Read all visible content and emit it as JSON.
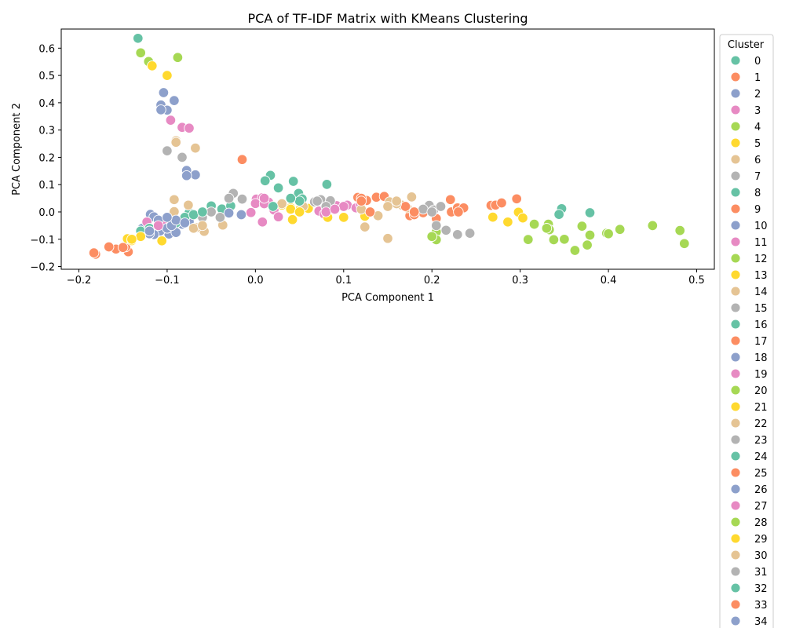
{
  "chart_data": {
    "type": "scatter",
    "title": "PCA of TF-IDF Matrix with KMeans Clustering",
    "xlabel": "PCA Component 1",
    "ylabel": "PCA Component 2",
    "xlim": [
      -0.22,
      0.52
    ],
    "ylim": [
      -0.21,
      0.67
    ],
    "xticks": [
      -0.2,
      -0.1,
      0.0,
      0.1,
      0.2,
      0.3,
      0.4,
      0.5
    ],
    "xtick_labels": [
      "−0.2",
      "−0.1",
      "0.0",
      "0.1",
      "0.2",
      "0.3",
      "0.4",
      "0.5"
    ],
    "yticks": [
      -0.2,
      -0.1,
      0.0,
      0.1,
      0.2,
      0.3,
      0.4,
      0.5,
      0.6
    ],
    "ytick_labels": [
      "−0.2",
      "−0.1",
      "0.0",
      "0.1",
      "0.2",
      "0.3",
      "0.4",
      "0.5",
      "0.6"
    ],
    "grid": false,
    "legend": {
      "title": "Cluster",
      "placement": "outside-right",
      "labels": [
        "0",
        "1",
        "2",
        "3",
        "4",
        "5",
        "6",
        "7",
        "8",
        "9",
        "10",
        "11",
        "12",
        "13",
        "14",
        "15",
        "16",
        "17",
        "18",
        "19",
        "20",
        "21",
        "22",
        "23",
        "24",
        "25",
        "26",
        "27",
        "28",
        "29",
        "30",
        "31",
        "32",
        "33",
        "34"
      ]
    },
    "palette": [
      "#66c2a5",
      "#fc8d62",
      "#8da0cb",
      "#e78ac3",
      "#a6d854",
      "#ffd92f",
      "#e5c494",
      "#b3b3b3"
    ],
    "series": [
      {
        "name": "0",
        "points": [
          [
            -0.133,
            0.636
          ],
          [
            0.017,
            0.134
          ],
          [
            0.043,
            0.112
          ],
          [
            0.026,
            0.088
          ],
          [
            0.049,
            0.068
          ],
          [
            0.053,
            0.048
          ],
          [
            0.011,
            0.114
          ],
          [
            0.081,
            0.101
          ],
          [
            0.347,
            0.012
          ],
          [
            0.344,
            -0.009
          ],
          [
            0.379,
            -0.003
          ],
          [
            -0.05,
            0.022
          ],
          [
            -0.075,
            -0.002
          ],
          [
            -0.038,
            0.011
          ],
          [
            -0.028,
            0.022
          ],
          [
            -0.063,
            -0.011
          ]
        ]
      },
      {
        "name": "1",
        "points": [
          [
            -0.015,
            0.192
          ],
          [
            0.116,
            0.053
          ],
          [
            0.126,
            0.042
          ],
          [
            0.137,
            0.054
          ],
          [
            0.146,
            0.057
          ],
          [
            0.175,
            -0.014
          ],
          [
            0.18,
            0.001
          ],
          [
            0.19,
            -0.003
          ],
          [
            0.205,
            -0.024
          ],
          [
            0.221,
            0.045
          ],
          [
            0.222,
            0.0
          ],
          [
            0.229,
            0.015
          ],
          [
            0.236,
            0.015
          ],
          [
            0.267,
            0.024
          ],
          [
            0.272,
            0.025
          ],
          [
            0.279,
            0.033
          ],
          [
            0.296,
            0.048
          ],
          [
            -0.181,
            -0.155
          ],
          [
            -0.158,
            -0.136
          ],
          [
            -0.144,
            -0.146
          ],
          [
            -0.166,
            -0.128
          ],
          [
            -0.147,
            -0.128
          ],
          [
            -0.183,
            -0.15
          ]
        ]
      },
      {
        "name": "2",
        "points": [
          [
            -0.104,
            0.437
          ],
          [
            -0.107,
            0.392
          ],
          [
            -0.092,
            0.408
          ],
          [
            -0.1,
            0.373
          ],
          [
            -0.107,
            0.374
          ],
          [
            -0.078,
            0.152
          ],
          [
            -0.068,
            0.136
          ],
          [
            -0.078,
            0.133
          ],
          [
            -0.119,
            -0.009
          ],
          [
            -0.115,
            -0.018
          ],
          [
            -0.098,
            -0.081
          ],
          [
            -0.124,
            -0.074
          ],
          [
            -0.128,
            -0.06
          ],
          [
            -0.108,
            -0.07
          ],
          [
            -0.093,
            -0.038
          ],
          [
            -0.083,
            -0.045
          ],
          [
            -0.075,
            -0.035
          ],
          [
            -0.03,
            -0.004
          ],
          [
            -0.016,
            -0.01
          ],
          [
            -0.09,
            -0.075
          ],
          [
            -0.115,
            -0.083
          ]
        ]
      },
      {
        "name": "3",
        "points": [
          [
            -0.096,
            0.336
          ],
          [
            -0.083,
            0.31
          ],
          [
            -0.075,
            0.307
          ],
          [
            0.001,
            0.047
          ],
          [
            0.008,
            0.052
          ],
          [
            0.015,
            0.036
          ],
          [
            0.021,
            0.007
          ],
          [
            0.026,
            -0.018
          ],
          [
            0.008,
            -0.037
          ],
          [
            0.072,
            0.003
          ],
          [
            0.078,
            -0.008
          ],
          [
            0.092,
            0.023
          ],
          [
            0.104,
            0.025
          ],
          [
            0.114,
            0.015
          ],
          [
            0.119,
            0.028
          ],
          [
            -0.104,
            -0.045
          ],
          [
            -0.123,
            -0.037
          ],
          [
            0.0,
            0.031
          ],
          [
            -0.005,
            -0.002
          ]
        ]
      },
      {
        "name": "4",
        "points": [
          [
            -0.13,
            0.583
          ],
          [
            -0.121,
            0.551
          ],
          [
            -0.088,
            0.566
          ],
          [
            0.205,
            -0.073
          ],
          [
            0.205,
            -0.102
          ],
          [
            0.309,
            -0.101
          ],
          [
            0.316,
            -0.045
          ],
          [
            0.332,
            -0.045
          ],
          [
            0.333,
            -0.065
          ],
          [
            0.338,
            -0.102
          ],
          [
            0.362,
            -0.141
          ],
          [
            0.37,
            -0.052
          ],
          [
            0.376,
            -0.121
          ],
          [
            0.379,
            -0.085
          ],
          [
            0.398,
            -0.078
          ],
          [
            0.413,
            -0.064
          ],
          [
            0.45,
            -0.05
          ],
          [
            0.481,
            -0.068
          ],
          [
            0.486,
            -0.116
          ]
        ]
      },
      {
        "name": "5",
        "points": [
          [
            -0.117,
            0.535
          ],
          [
            -0.1,
            0.5
          ],
          [
            0.042,
            -0.028
          ],
          [
            0.049,
            0.005
          ],
          [
            0.06,
            0.013
          ],
          [
            0.082,
            -0.02
          ],
          [
            0.1,
            -0.02
          ],
          [
            0.124,
            -0.016
          ],
          [
            0.269,
            -0.019
          ],
          [
            0.286,
            -0.037
          ],
          [
            0.298,
            -0.001
          ],
          [
            0.303,
            -0.022
          ],
          [
            -0.106,
            -0.106
          ],
          [
            -0.13,
            -0.084
          ],
          [
            -0.145,
            -0.098
          ],
          [
            -0.14,
            -0.105
          ],
          [
            0.03,
            0.025
          ],
          [
            0.04,
            0.015
          ]
        ]
      },
      {
        "name": "6",
        "points": [
          [
            -0.09,
            0.261
          ],
          [
            -0.09,
            0.255
          ],
          [
            -0.068,
            0.234
          ],
          [
            -0.092,
            0.045
          ],
          [
            -0.076,
            0.025
          ],
          [
            -0.092,
            0.001
          ],
          [
            -0.058,
            -0.071
          ],
          [
            -0.067,
            -0.058
          ],
          [
            -0.037,
            -0.048
          ],
          [
            0.124,
            -0.055
          ],
          [
            0.15,
            -0.097
          ],
          [
            0.152,
            0.037
          ],
          [
            0.166,
            0.025
          ],
          [
            0.172,
            0.015
          ],
          [
            0.177,
            0.055
          ],
          [
            0.139,
            -0.014
          ],
          [
            0.03,
            0.03
          ],
          [
            0.054,
            0.02
          ]
        ]
      },
      {
        "name": "7",
        "points": [
          [
            -0.083,
            0.2
          ],
          [
            -0.1,
            0.224
          ],
          [
            -0.025,
            0.068
          ],
          [
            -0.015,
            0.047
          ],
          [
            0.067,
            0.037
          ],
          [
            0.074,
            0.045
          ],
          [
            0.085,
            0.041
          ],
          [
            0.197,
            0.024
          ],
          [
            0.202,
            0.007
          ],
          [
            0.21,
            0.022
          ],
          [
            0.205,
            -0.05
          ],
          [
            0.216,
            -0.067
          ],
          [
            0.229,
            -0.083
          ],
          [
            0.243,
            -0.078
          ],
          [
            -0.05,
            0.0
          ],
          [
            -0.06,
            -0.02
          ],
          [
            -0.03,
            0.05
          ]
        ]
      },
      {
        "name": "8",
        "points": [
          [
            -0.13,
            -0.07
          ],
          [
            -0.12,
            -0.06
          ],
          [
            -0.09,
            -0.04
          ],
          [
            -0.08,
            -0.02
          ],
          [
            0.05,
            0.04
          ]
        ]
      },
      {
        "name": "9",
        "points": [
          [
            0.12,
            0.05
          ],
          [
            0.17,
            0.02
          ],
          [
            0.18,
            -0.01
          ],
          [
            -0.15,
            -0.13
          ]
        ]
      },
      {
        "name": "10",
        "points": [
          [
            -0.11,
            -0.03
          ],
          [
            -0.1,
            -0.06
          ],
          [
            -0.12,
            -0.08
          ],
          [
            -0.095,
            -0.05
          ]
        ]
      },
      {
        "name": "11",
        "points": [
          [
            0.1,
            0.02
          ],
          [
            0.01,
            0.03
          ],
          [
            -0.11,
            -0.05
          ]
        ]
      },
      {
        "name": "12",
        "points": [
          [
            0.2,
            -0.09
          ],
          [
            0.33,
            -0.06
          ]
        ]
      },
      {
        "name": "13",
        "points": [
          [
            0.04,
            0.01
          ],
          [
            -0.13,
            -0.09
          ],
          [
            0.1,
            -0.02
          ]
        ]
      },
      {
        "name": "14",
        "points": [
          [
            0.16,
            0.03
          ],
          [
            -0.07,
            -0.06
          ],
          [
            0.12,
            0.01
          ]
        ]
      },
      {
        "name": "15",
        "points": [
          [
            0.19,
            0.01
          ],
          [
            -0.04,
            -0.02
          ],
          [
            0.08,
            0.02
          ]
        ]
      },
      {
        "name": "16",
        "points": [
          [
            -0.07,
            -0.01
          ],
          [
            0.04,
            0.05
          ]
        ]
      },
      {
        "name": "17",
        "points": [
          [
            0.12,
            0.04
          ],
          [
            0.23,
            0.0
          ]
        ]
      },
      {
        "name": "18",
        "points": [
          [
            -0.09,
            -0.03
          ],
          [
            -0.12,
            -0.07
          ]
        ]
      },
      {
        "name": "19",
        "points": [
          [
            0.01,
            0.05
          ],
          [
            0.08,
            0.0
          ]
        ]
      },
      {
        "name": "20",
        "points": [
          [
            0.4,
            -0.08
          ]
        ]
      },
      {
        "name": "21",
        "points": [
          [
            0.1,
            -0.02
          ],
          [
            -0.14,
            -0.1
          ]
        ]
      },
      {
        "name": "22",
        "points": [
          [
            0.15,
            0.02
          ],
          [
            -0.06,
            -0.05
          ]
        ]
      },
      {
        "name": "23",
        "points": [
          [
            0.2,
            0.0
          ],
          [
            0.07,
            0.04
          ]
        ]
      },
      {
        "name": "24",
        "points": [
          [
            -0.06,
            0.0
          ]
        ]
      },
      {
        "name": "25",
        "points": [
          [
            0.18,
            0.0
          ]
        ]
      },
      {
        "name": "26",
        "points": [
          [
            -0.1,
            -0.02
          ]
        ]
      },
      {
        "name": "27",
        "points": [
          [
            0.09,
            0.01
          ]
        ]
      },
      {
        "name": "28",
        "points": [
          [
            0.35,
            -0.1
          ]
        ]
      },
      {
        "name": "29",
        "points": [
          [
            0.05,
            0.0
          ]
        ]
      },
      {
        "name": "30",
        "points": [
          [
            0.16,
            0.04
          ]
        ]
      },
      {
        "name": "31",
        "points": [
          [
            0.21,
            0.02
          ]
        ]
      },
      {
        "name": "32",
        "points": [
          [
            0.02,
            0.02
          ]
        ]
      },
      {
        "name": "33",
        "points": [
          [
            0.13,
            0.0
          ]
        ]
      },
      {
        "name": "34",
        "points": [
          [
            -0.08,
            -0.04
          ]
        ]
      }
    ]
  }
}
